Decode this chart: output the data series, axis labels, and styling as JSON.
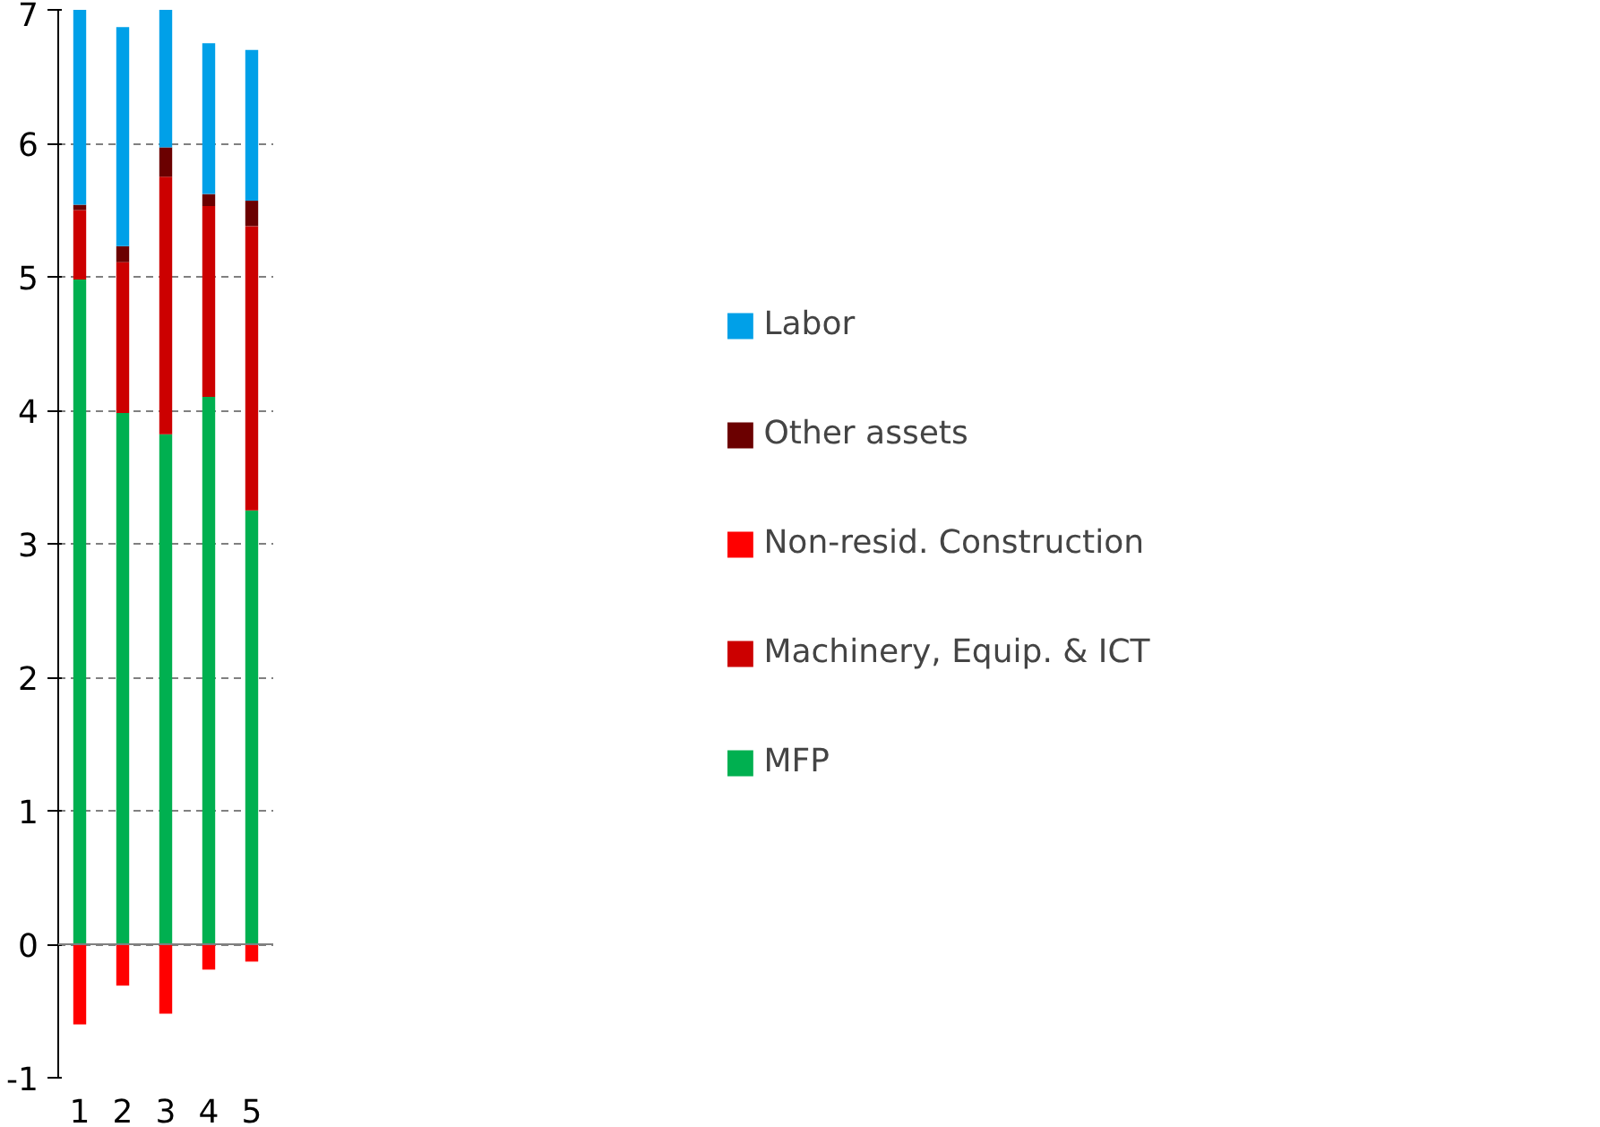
{
  "chart_data": {
    "type": "bar",
    "stacked": true,
    "categories": [
      "1",
      "2",
      "3",
      "4",
      "5"
    ],
    "series": [
      {
        "name": "MFP",
        "color": "#00b050",
        "values": [
          4.98,
          3.98,
          3.82,
          4.1,
          3.25
        ]
      },
      {
        "name": "Machinery, Equip. & ICT",
        "color": "#cc0000",
        "values": [
          0.52,
          1.13,
          1.93,
          1.43,
          2.13
        ]
      },
      {
        "name": "Non-resid. Construction",
        "color": "#ff0000",
        "values": [
          -0.6,
          -0.31,
          -0.52,
          -0.19,
          -0.13
        ]
      },
      {
        "name": "Other assets",
        "color": "#6b0000",
        "values": [
          0.04,
          0.12,
          0.22,
          0.09,
          0.19
        ]
      },
      {
        "name": "Labor",
        "color": "#00a0e8",
        "values": [
          1.46,
          1.64,
          1.03,
          1.13,
          1.13
        ]
      }
    ],
    "ylim": [
      -1,
      7
    ],
    "yticks": [
      -1,
      0,
      1,
      2,
      3,
      4,
      5,
      6,
      7
    ],
    "grid": "y",
    "legend": "right"
  }
}
